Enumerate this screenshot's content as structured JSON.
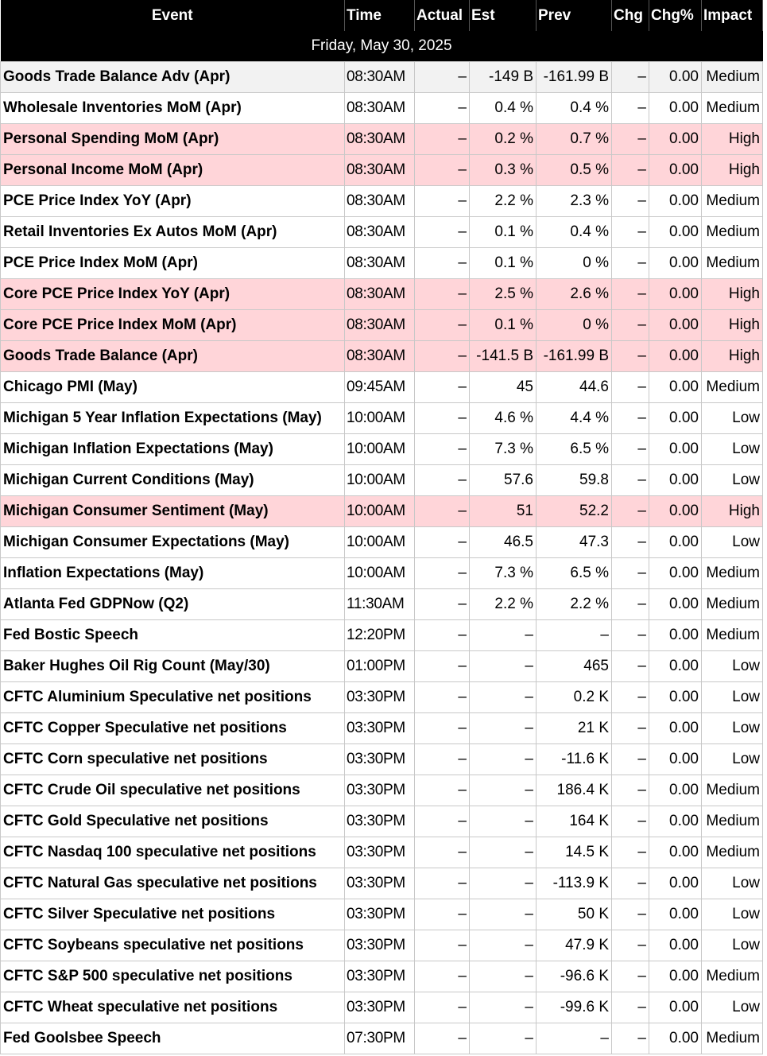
{
  "headers": [
    "Event",
    "Time",
    "Actual",
    "Est",
    "Prev",
    "Chg",
    "Chg%",
    "Impact"
  ],
  "date_label": "Friday, May 30, 2025",
  "colors": {
    "header_bg": "#000000",
    "header_text": "#ffffff",
    "high_impact_bg": "#ffd5d9"
  },
  "rows": [
    {
      "event": "Goods Trade Balance Adv (Apr)",
      "time": "08:30AM",
      "actual": "–",
      "est": "-149 B",
      "prev": "-161.99 B",
      "chg": "–",
      "chg_pct": "0.00",
      "impact": "Medium"
    },
    {
      "event": "Wholesale Inventories MoM (Apr)",
      "time": "08:30AM",
      "actual": "–",
      "est": "0.4 %",
      "prev": "0.4 %",
      "chg": "–",
      "chg_pct": "0.00",
      "impact": "Medium"
    },
    {
      "event": "Personal Spending MoM (Apr)",
      "time": "08:30AM",
      "actual": "–",
      "est": "0.2 %",
      "prev": "0.7 %",
      "chg": "–",
      "chg_pct": "0.00",
      "impact": "High"
    },
    {
      "event": "Personal Income MoM (Apr)",
      "time": "08:30AM",
      "actual": "–",
      "est": "0.3 %",
      "prev": "0.5 %",
      "chg": "–",
      "chg_pct": "0.00",
      "impact": "High"
    },
    {
      "event": "PCE Price Index YoY (Apr)",
      "time": "08:30AM",
      "actual": "–",
      "est": "2.2 %",
      "prev": "2.3 %",
      "chg": "–",
      "chg_pct": "0.00",
      "impact": "Medium"
    },
    {
      "event": "Retail Inventories Ex Autos MoM (Apr)",
      "time": "08:30AM",
      "actual": "–",
      "est": "0.1 %",
      "prev": "0.4 %",
      "chg": "–",
      "chg_pct": "0.00",
      "impact": "Medium"
    },
    {
      "event": "PCE Price Index MoM (Apr)",
      "time": "08:30AM",
      "actual": "–",
      "est": "0.1 %",
      "prev": "0 %",
      "chg": "–",
      "chg_pct": "0.00",
      "impact": "Medium"
    },
    {
      "event": "Core PCE Price Index YoY (Apr)",
      "time": "08:30AM",
      "actual": "–",
      "est": "2.5 %",
      "prev": "2.6 %",
      "chg": "–",
      "chg_pct": "0.00",
      "impact": "High"
    },
    {
      "event": "Core PCE Price Index MoM (Apr)",
      "time": "08:30AM",
      "actual": "–",
      "est": "0.1 %",
      "prev": "0 %",
      "chg": "–",
      "chg_pct": "0.00",
      "impact": "High"
    },
    {
      "event": "Goods Trade Balance (Apr)",
      "time": "08:30AM",
      "actual": "–",
      "est": "-141.5 B",
      "prev": "-161.99 B",
      "chg": "–",
      "chg_pct": "0.00",
      "impact": "High"
    },
    {
      "event": "Chicago PMI (May)",
      "time": "09:45AM",
      "actual": "–",
      "est": "45",
      "prev": "44.6",
      "chg": "–",
      "chg_pct": "0.00",
      "impact": "Medium"
    },
    {
      "event": "Michigan 5 Year Inflation Expectations (May)",
      "time": "10:00AM",
      "actual": "–",
      "est": "4.6 %",
      "prev": "4.4 %",
      "chg": "–",
      "chg_pct": "0.00",
      "impact": "Low"
    },
    {
      "event": "Michigan Inflation Expectations (May)",
      "time": "10:00AM",
      "actual": "–",
      "est": "7.3 %",
      "prev": "6.5 %",
      "chg": "–",
      "chg_pct": "0.00",
      "impact": "Low"
    },
    {
      "event": "Michigan Current Conditions (May)",
      "time": "10:00AM",
      "actual": "–",
      "est": "57.6",
      "prev": "59.8",
      "chg": "–",
      "chg_pct": "0.00",
      "impact": "Low"
    },
    {
      "event": "Michigan Consumer Sentiment (May)",
      "time": "10:00AM",
      "actual": "–",
      "est": "51",
      "prev": "52.2",
      "chg": "–",
      "chg_pct": "0.00",
      "impact": "High"
    },
    {
      "event": "Michigan Consumer Expectations (May)",
      "time": "10:00AM",
      "actual": "–",
      "est": "46.5",
      "prev": "47.3",
      "chg": "–",
      "chg_pct": "0.00",
      "impact": "Low"
    },
    {
      "event": "Inflation Expectations (May)",
      "time": "10:00AM",
      "actual": "–",
      "est": "7.3 %",
      "prev": "6.5 %",
      "chg": "–",
      "chg_pct": "0.00",
      "impact": "Medium"
    },
    {
      "event": "Atlanta Fed GDPNow (Q2)",
      "time": "11:30AM",
      "actual": "–",
      "est": "2.2 %",
      "prev": "2.2 %",
      "chg": "–",
      "chg_pct": "0.00",
      "impact": "Medium"
    },
    {
      "event": "Fed Bostic Speech",
      "time": "12:20PM",
      "actual": "–",
      "est": "–",
      "prev": "–",
      "chg": "–",
      "chg_pct": "0.00",
      "impact": "Medium"
    },
    {
      "event": "Baker Hughes Oil Rig Count (May/30)",
      "time": "01:00PM",
      "actual": "–",
      "est": "–",
      "prev": "465",
      "chg": "–",
      "chg_pct": "0.00",
      "impact": "Low"
    },
    {
      "event": "CFTC Aluminium Speculative net positions",
      "time": "03:30PM",
      "actual": "–",
      "est": "–",
      "prev": "0.2 K",
      "chg": "–",
      "chg_pct": "0.00",
      "impact": "Low"
    },
    {
      "event": "CFTC Copper Speculative net positions",
      "time": "03:30PM",
      "actual": "–",
      "est": "–",
      "prev": "21 K",
      "chg": "–",
      "chg_pct": "0.00",
      "impact": "Low"
    },
    {
      "event": "CFTC Corn speculative net positions",
      "time": "03:30PM",
      "actual": "–",
      "est": "–",
      "prev": "-11.6 K",
      "chg": "–",
      "chg_pct": "0.00",
      "impact": "Low"
    },
    {
      "event": "CFTC Crude Oil speculative net positions",
      "time": "03:30PM",
      "actual": "–",
      "est": "–",
      "prev": "186.4 K",
      "chg": "–",
      "chg_pct": "0.00",
      "impact": "Medium"
    },
    {
      "event": "CFTC Gold Speculative net positions",
      "time": "03:30PM",
      "actual": "–",
      "est": "–",
      "prev": "164 K",
      "chg": "–",
      "chg_pct": "0.00",
      "impact": "Medium"
    },
    {
      "event": "CFTC Nasdaq 100 speculative net positions",
      "time": "03:30PM",
      "actual": "–",
      "est": "–",
      "prev": "14.5 K",
      "chg": "–",
      "chg_pct": "0.00",
      "impact": "Medium"
    },
    {
      "event": "CFTC Natural Gas speculative net positions",
      "time": "03:30PM",
      "actual": "–",
      "est": "–",
      "prev": "-113.9 K",
      "chg": "–",
      "chg_pct": "0.00",
      "impact": "Low"
    },
    {
      "event": "CFTC Silver Speculative net positions",
      "time": "03:30PM",
      "actual": "–",
      "est": "–",
      "prev": "50 K",
      "chg": "–",
      "chg_pct": "0.00",
      "impact": "Low"
    },
    {
      "event": "CFTC Soybeans speculative net positions",
      "time": "03:30PM",
      "actual": "–",
      "est": "–",
      "prev": "47.9 K",
      "chg": "–",
      "chg_pct": "0.00",
      "impact": "Low"
    },
    {
      "event": "CFTC S&P 500 speculative net positions",
      "time": "03:30PM",
      "actual": "–",
      "est": "–",
      "prev": "-96.6 K",
      "chg": "–",
      "chg_pct": "0.00",
      "impact": "Medium"
    },
    {
      "event": "CFTC Wheat speculative net positions",
      "time": "03:30PM",
      "actual": "–",
      "est": "–",
      "prev": "-99.6 K",
      "chg": "–",
      "chg_pct": "0.00",
      "impact": "Low"
    },
    {
      "event": "Fed Goolsbee Speech",
      "time": "07:30PM",
      "actual": "–",
      "est": "–",
      "prev": "–",
      "chg": "–",
      "chg_pct": "0.00",
      "impact": "Medium"
    }
  ]
}
